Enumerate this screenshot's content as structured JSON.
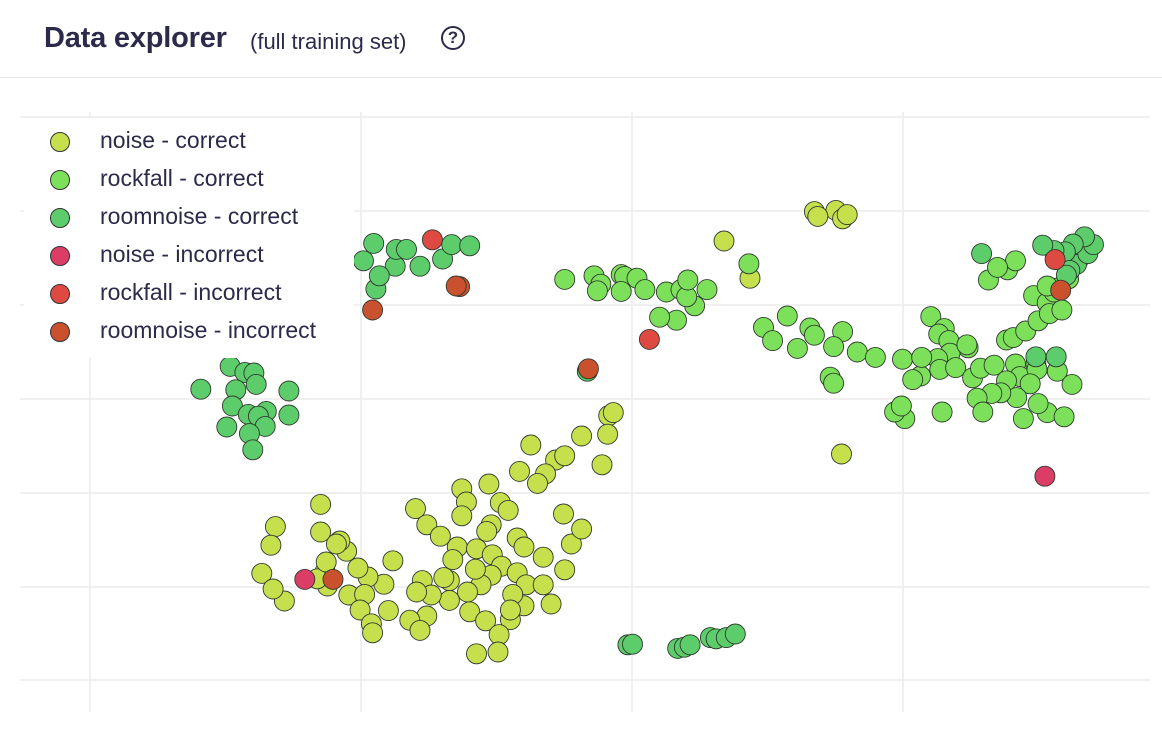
{
  "header": {
    "title": "Data explorer",
    "subtitle": "(full training set)",
    "help_icon": "question-circle-icon"
  },
  "chart_data": {
    "type": "scatter",
    "title": "Data explorer",
    "subtitle": "(full training set)",
    "xlabel": "",
    "ylabel": "",
    "xlim": [
      0,
      1
    ],
    "ylim": [
      0,
      1
    ],
    "grid": true,
    "legend_position": "top-left",
    "series": [
      {
        "name": "noise - correct",
        "color": "#c5e04c",
        "points": [
          [
            0.703,
            0.834
          ],
          [
            0.722,
            0.836
          ],
          [
            0.706,
            0.826
          ],
          [
            0.728,
            0.822
          ],
          [
            0.732,
            0.829
          ],
          [
            0.623,
            0.785
          ],
          [
            0.646,
            0.723
          ],
          [
            0.727,
            0.43
          ],
          [
            0.521,
            0.494
          ],
          [
            0.525,
            0.499
          ],
          [
            0.52,
            0.463
          ],
          [
            0.497,
            0.46
          ],
          [
            0.452,
            0.445
          ],
          [
            0.474,
            0.42
          ],
          [
            0.482,
            0.427
          ],
          [
            0.515,
            0.412
          ],
          [
            0.465,
            0.397
          ],
          [
            0.442,
            0.401
          ],
          [
            0.458,
            0.381
          ],
          [
            0.415,
            0.38
          ],
          [
            0.391,
            0.372
          ],
          [
            0.395,
            0.35
          ],
          [
            0.425,
            0.349
          ],
          [
            0.432,
            0.336
          ],
          [
            0.391,
            0.327
          ],
          [
            0.35,
            0.339
          ],
          [
            0.36,
            0.312
          ],
          [
            0.417,
            0.312
          ],
          [
            0.413,
            0.301
          ],
          [
            0.372,
            0.293
          ],
          [
            0.44,
            0.29
          ],
          [
            0.387,
            0.275
          ],
          [
            0.404,
            0.272
          ],
          [
            0.418,
            0.262
          ],
          [
            0.446,
            0.275
          ],
          [
            0.463,
            0.258
          ],
          [
            0.383,
            0.254
          ],
          [
            0.426,
            0.243
          ],
          [
            0.417,
            0.228
          ],
          [
            0.408,
            0.212
          ],
          [
            0.396,
            0.2
          ],
          [
            0.38,
            0.186
          ],
          [
            0.398,
            0.167
          ],
          [
            0.412,
            0.152
          ],
          [
            0.434,
            0.154
          ],
          [
            0.446,
            0.177
          ],
          [
            0.424,
            0.129
          ],
          [
            0.404,
            0.097
          ],
          [
            0.423,
            0.1
          ],
          [
            0.33,
            0.252
          ],
          [
            0.356,
            0.219
          ],
          [
            0.364,
            0.195
          ],
          [
            0.38,
            0.219
          ],
          [
            0.403,
            0.238
          ],
          [
            0.44,
            0.232
          ],
          [
            0.448,
            0.212
          ],
          [
            0.436,
            0.196
          ],
          [
            0.434,
            0.17
          ],
          [
            0.463,
            0.212
          ],
          [
            0.482,
            0.237
          ],
          [
            0.488,
            0.28
          ],
          [
            0.497,
            0.305
          ],
          [
            0.481,
            0.33
          ],
          [
            0.47,
            0.18
          ],
          [
            0.351,
            0.2
          ],
          [
            0.36,
            0.16
          ],
          [
            0.326,
            0.169
          ],
          [
            0.345,
            0.153
          ],
          [
            0.322,
            0.213
          ],
          [
            0.308,
            0.225
          ],
          [
            0.299,
            0.24
          ],
          [
            0.289,
            0.268
          ],
          [
            0.283,
            0.285
          ],
          [
            0.28,
            0.28
          ],
          [
            0.27,
            0.234
          ],
          [
            0.291,
            0.195
          ],
          [
            0.305,
            0.196
          ],
          [
            0.301,
            0.17
          ],
          [
            0.311,
            0.147
          ],
          [
            0.312,
            0.132
          ],
          [
            0.354,
            0.136
          ],
          [
            0.375,
            0.224
          ],
          [
            0.272,
            0.21
          ],
          [
            0.266,
            0.3
          ],
          [
            0.226,
            0.309
          ],
          [
            0.214,
            0.231
          ],
          [
            0.222,
            0.278
          ],
          [
            0.263,
            0.222
          ],
          [
            0.266,
            0.346
          ],
          [
            0.271,
            0.25
          ],
          [
            0.234,
            0.185
          ],
          [
            0.224,
            0.205
          ]
        ]
      },
      {
        "name": "rockfall - correct",
        "color": "#7de05a",
        "points": [
          [
            0.482,
            0.721
          ],
          [
            0.508,
            0.727
          ],
          [
            0.514,
            0.713
          ],
          [
            0.532,
            0.729
          ],
          [
            0.535,
            0.726
          ],
          [
            0.546,
            0.723
          ],
          [
            0.511,
            0.702
          ],
          [
            0.532,
            0.701
          ],
          [
            0.553,
            0.704
          ],
          [
            0.572,
            0.7
          ],
          [
            0.585,
            0.704
          ],
          [
            0.608,
            0.704
          ],
          [
            0.597,
            0.677
          ],
          [
            0.581,
            0.653
          ],
          [
            0.566,
            0.658
          ],
          [
            0.59,
            0.692
          ],
          [
            0.645,
            0.747
          ],
          [
            0.591,
            0.72
          ],
          [
            0.658,
            0.641
          ],
          [
            0.679,
            0.66
          ],
          [
            0.699,
            0.64
          ],
          [
            0.666,
            0.619
          ],
          [
            0.688,
            0.606
          ],
          [
            0.703,
            0.628
          ],
          [
            0.728,
            0.634
          ],
          [
            0.72,
            0.609
          ],
          [
            0.741,
            0.6
          ],
          [
            0.757,
            0.591
          ],
          [
            0.781,
            0.588
          ],
          [
            0.797,
            0.56
          ],
          [
            0.79,
            0.554
          ],
          [
            0.806,
            0.659
          ],
          [
            0.818,
            0.639
          ],
          [
            0.813,
            0.63
          ],
          [
            0.822,
            0.619
          ],
          [
            0.839,
            0.607
          ],
          [
            0.823,
            0.598
          ],
          [
            0.812,
            0.589
          ],
          [
            0.798,
            0.591
          ],
          [
            0.814,
            0.571
          ],
          [
            0.838,
            0.612
          ],
          [
            0.828,
            0.574
          ],
          [
            0.843,
            0.557
          ],
          [
            0.85,
            0.573
          ],
          [
            0.862,
            0.578
          ],
          [
            0.881,
            0.58
          ],
          [
            0.899,
            0.58
          ],
          [
            0.885,
            0.559
          ],
          [
            0.9,
            0.571
          ],
          [
            0.918,
            0.568
          ],
          [
            0.931,
            0.546
          ],
          [
            0.894,
            0.547
          ],
          [
            0.873,
            0.552
          ],
          [
            0.882,
            0.524
          ],
          [
            0.868,
            0.532
          ],
          [
            0.86,
            0.531
          ],
          [
            0.847,
            0.523
          ],
          [
            0.816,
            0.5
          ],
          [
            0.783,
            0.489
          ],
          [
            0.774,
            0.5
          ],
          [
            0.78,
            0.51
          ],
          [
            0.852,
            0.5
          ],
          [
            0.888,
            0.489
          ],
          [
            0.909,
            0.499
          ],
          [
            0.924,
            0.492
          ],
          [
            0.901,
            0.514
          ],
          [
            0.873,
            0.62
          ],
          [
            0.879,
            0.624
          ],
          [
            0.89,
            0.635
          ],
          [
            0.901,
            0.652
          ],
          [
            0.897,
            0.694
          ],
          [
            0.909,
            0.682
          ],
          [
            0.911,
            0.664
          ],
          [
            0.922,
            0.67
          ],
          [
            0.915,
            0.7
          ],
          [
            0.928,
            0.722
          ],
          [
            0.857,
            0.72
          ],
          [
            0.874,
            0.737
          ],
          [
            0.881,
            0.752
          ],
          [
            0.865,
            0.741
          ],
          [
            0.919,
            0.707
          ],
          [
            0.909,
            0.71
          ],
          [
            0.717,
            0.558
          ],
          [
            0.72,
            0.548
          ]
        ]
      },
      {
        "name": "roomnoise - correct",
        "color": "#5dcc6a",
        "points": [
          [
            0.313,
            0.781
          ],
          [
            0.332,
            0.743
          ],
          [
            0.333,
            0.771
          ],
          [
            0.342,
            0.771
          ],
          [
            0.354,
            0.743
          ],
          [
            0.374,
            0.755
          ],
          [
            0.382,
            0.779
          ],
          [
            0.398,
            0.777
          ],
          [
            0.304,
            0.752
          ],
          [
            0.284,
            0.753
          ],
          [
            0.315,
            0.705
          ],
          [
            0.318,
            0.727
          ],
          [
            0.238,
            0.715
          ],
          [
            0.244,
            0.611
          ],
          [
            0.223,
            0.608
          ],
          [
            0.2,
            0.61
          ],
          [
            0.186,
            0.576
          ],
          [
            0.199,
            0.566
          ],
          [
            0.207,
            0.565
          ],
          [
            0.209,
            0.546
          ],
          [
            0.191,
            0.537
          ],
          [
            0.16,
            0.538
          ],
          [
            0.188,
            0.51
          ],
          [
            0.202,
            0.496
          ],
          [
            0.218,
            0.501
          ],
          [
            0.211,
            0.493
          ],
          [
            0.217,
            0.476
          ],
          [
            0.183,
            0.475
          ],
          [
            0.203,
            0.464
          ],
          [
            0.238,
            0.495
          ],
          [
            0.238,
            0.535
          ],
          [
            0.206,
            0.437
          ],
          [
            0.538,
            0.112
          ],
          [
            0.542,
            0.113
          ],
          [
            0.582,
            0.106
          ],
          [
            0.588,
            0.108
          ],
          [
            0.593,
            0.112
          ],
          [
            0.611,
            0.124
          ],
          [
            0.616,
            0.122
          ],
          [
            0.625,
            0.124
          ],
          [
            0.633,
            0.13
          ],
          [
            0.502,
            0.568
          ],
          [
            0.917,
            0.592
          ],
          [
            0.937,
            0.755
          ],
          [
            0.935,
            0.746
          ],
          [
            0.945,
            0.764
          ],
          [
            0.95,
            0.779
          ],
          [
            0.942,
            0.792
          ],
          [
            0.932,
            0.78
          ],
          [
            0.925,
            0.767
          ],
          [
            0.915,
            0.769
          ],
          [
            0.905,
            0.778
          ],
          [
            0.929,
            0.736
          ],
          [
            0.926,
            0.728
          ],
          [
            0.851,
            0.764
          ],
          [
            0.899,
            0.592
          ]
        ]
      },
      {
        "name": "noise - incorrect",
        "color": "#dc3d66",
        "points": [
          [
            0.252,
            0.221
          ],
          [
            0.907,
            0.393
          ]
        ]
      },
      {
        "name": "rockfall - incorrect",
        "color": "#de4a42",
        "points": [
          [
            0.365,
            0.787
          ],
          [
            0.557,
            0.621
          ],
          [
            0.916,
            0.754
          ]
        ]
      },
      {
        "name": "roomnoise - incorrect",
        "color": "#c9512e",
        "points": [
          [
            0.389,
            0.709
          ],
          [
            0.386,
            0.71
          ],
          [
            0.277,
            0.221
          ],
          [
            0.503,
            0.572
          ],
          [
            0.921,
            0.703
          ],
          [
            0.312,
            0.67
          ]
        ]
      }
    ]
  }
}
